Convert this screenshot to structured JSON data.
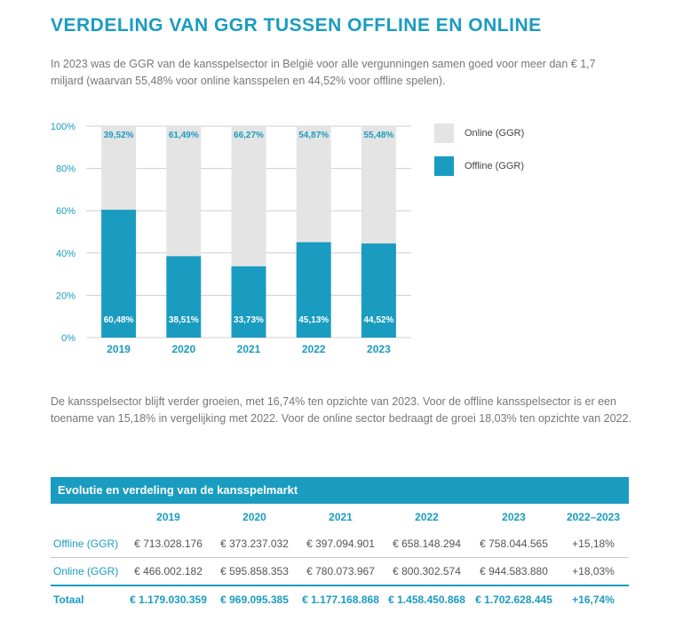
{
  "title": "VERDELING VAN GGR TUSSEN OFFLINE EN ONLINE",
  "intro": "In 2023 was de GGR van de kansspelsector in België voor alle vergunningen samen goed voor meer dan € 1,7 miljard (waarvan 55,48% voor online kansspelen en 44,52% voor offline spelen).",
  "paragraph2": "De kansspelsector blijft verder groeien, met 16,74% ten opzichte van 2023. Voor de offline kansspelsector is er een toename van 15,18% in vergelijking met 2022. Voor de online sector bedraagt de groei 18,03% ten opzichte van 2022.",
  "colors": {
    "offline": "#1a9cc0",
    "online": "#e4e4e4",
    "accent": "#1a9cc0"
  },
  "chart_data": {
    "type": "bar",
    "stacked": true,
    "categories": [
      "2019",
      "2020",
      "2021",
      "2022",
      "2023"
    ],
    "series": [
      {
        "name": "Offline (GGR)",
        "values": [
          60.48,
          38.51,
          33.73,
          45.13,
          44.52
        ],
        "labels": [
          "60,48%",
          "38,51%",
          "33,73%",
          "45,13%",
          "44,52%"
        ]
      },
      {
        "name": "Online (GGR)",
        "values": [
          39.52,
          61.49,
          66.27,
          54.87,
          55.48
        ],
        "labels": [
          "39,52%",
          "61,49%",
          "66,27%",
          "54,87%",
          "55,48%"
        ]
      }
    ],
    "ylim": [
      0,
      100
    ],
    "yticks": [
      "0%",
      "20%",
      "40%",
      "60%",
      "80%",
      "100%"
    ],
    "grid": true,
    "legend_position": "right"
  },
  "legend": {
    "online": "Online (GGR)",
    "offline": "Offline (GGR)"
  },
  "table": {
    "title": "Evolutie en verdeling van de kansspelmarkt",
    "headers": [
      "",
      "2019",
      "2020",
      "2021",
      "2022",
      "2023",
      "2022–2023"
    ],
    "rows": [
      {
        "label": "Offline (GGR)",
        "values": [
          "€ 713.028.176",
          "€ 373.237.032",
          "€ 397.094.901",
          "€ 658.148.294",
          "€ 758.044.565",
          "+15,18%"
        ]
      },
      {
        "label": "Online (GGR)",
        "values": [
          "€ 466.002.182",
          "€ 595.858.353",
          "€ 780.073.967",
          "€ 800.302.574",
          "€ 944.583.880",
          "+18,03%"
        ]
      },
      {
        "label": "Totaal",
        "values": [
          "€ 1.179.030.359",
          "€ 969.095.385",
          "€ 1.177.168.868",
          "€ 1.458.450.868",
          "€ 1.702.628.445",
          "+16,74%"
        ]
      }
    ]
  }
}
